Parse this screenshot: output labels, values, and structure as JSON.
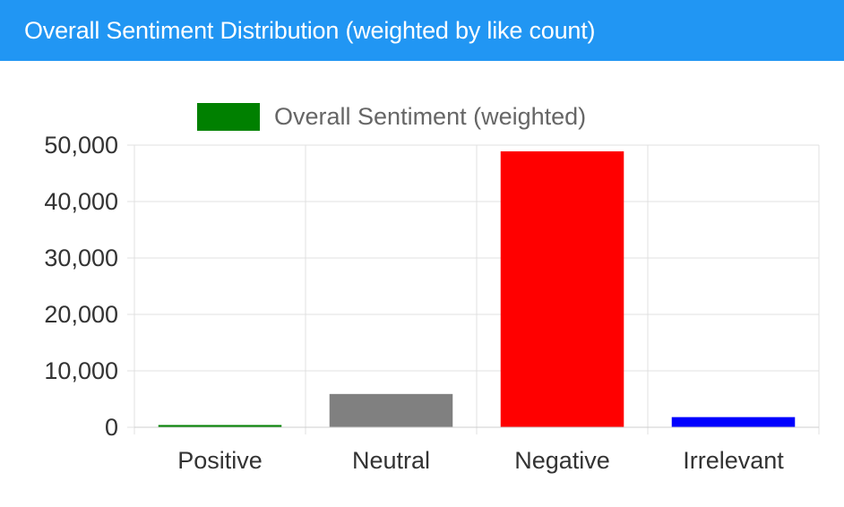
{
  "header": {
    "title": "Overall Sentiment Distribution (weighted by like count)"
  },
  "chart_data": {
    "type": "bar",
    "categories": [
      "Positive",
      "Neutral",
      "Negative",
      "Irrelevant"
    ],
    "series": [
      {
        "name": "Overall Sentiment (weighted)",
        "values": [
          400,
          5900,
          48900,
          1800
        ],
        "colors": [
          "#008000",
          "#808080",
          "#ff0000",
          "#0000ff"
        ]
      }
    ],
    "legend_color": "#008000",
    "legend_position": "top",
    "ylim": [
      0,
      50000
    ],
    "yticks": [
      0,
      10000,
      20000,
      30000,
      40000,
      50000
    ],
    "ytick_labels": [
      "0",
      "10,000",
      "20,000",
      "30,000",
      "40,000",
      "50,000"
    ],
    "grid": true
  }
}
